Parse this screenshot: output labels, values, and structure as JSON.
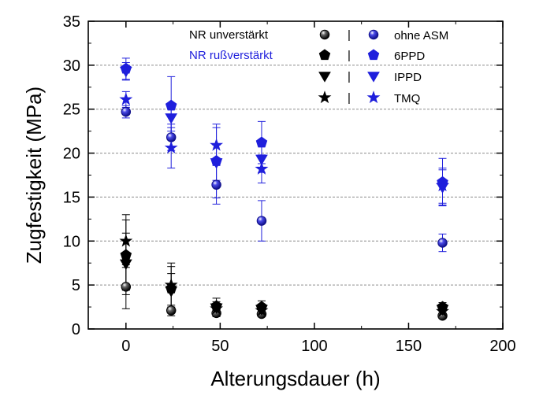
{
  "chart_data": {
    "type": "scatter",
    "xlabel": "Alterungsdauer (h)",
    "ylabel": "Zugfestigkeit (MPa)",
    "xlim": [
      -20,
      200
    ],
    "ylim": [
      0,
      35
    ],
    "x_ticks": [
      0,
      50,
      100,
      150,
      200
    ],
    "y_ticks": [
      0,
      5,
      10,
      15,
      20,
      25,
      30,
      35
    ],
    "grid": "horizontal dashed",
    "legend_position": "top-right",
    "legend": {
      "groups": [
        "NR unverstärkt",
        "NR rußverstärkt"
      ],
      "group_colors": [
        "#000000",
        "#1f1fdc"
      ],
      "separator": "|",
      "entries": [
        "ohne ASM",
        "6PPD",
        "IPPD",
        "TMQ"
      ]
    },
    "series": [
      {
        "name": "NR unverstärkt ohne ASM",
        "marker": "sphere",
        "color": "#000000",
        "x": [
          0,
          24,
          48,
          72,
          168
        ],
        "y": [
          4.8,
          2.1,
          1.8,
          1.7,
          1.5
        ],
        "err": [
          2.5,
          0.6,
          0.4,
          0.3,
          0.3
        ]
      },
      {
        "name": "NR unverstärkt 6PPD",
        "marker": "pentagon",
        "color": "#000000",
        "x": [
          0,
          24,
          48,
          72,
          168
        ],
        "y": [
          8.4,
          4.6,
          2.6,
          2.5,
          2.5
        ],
        "err": [
          4.0,
          2.5,
          0.9,
          0.7,
          0.5
        ]
      },
      {
        "name": "NR unverstärkt IPPD",
        "marker": "triangle-down",
        "color": "#000000",
        "x": [
          0,
          24,
          48,
          72,
          168
        ],
        "y": [
          7.4,
          4.3,
          2.4,
          2.2,
          2.2
        ],
        "err": [
          3.5,
          2.0,
          0.7,
          0.5,
          0.4
        ]
      },
      {
        "name": "NR unverstärkt TMQ",
        "marker": "star",
        "color": "#000000",
        "x": [
          0,
          24,
          48,
          72,
          168
        ],
        "y": [
          10.0,
          5.0,
          2.3,
          2.1,
          2.0
        ],
        "err": [
          3.0,
          2.5,
          0.6,
          0.5,
          0.4
        ]
      },
      {
        "name": "NR rußverstärkt ohne ASM",
        "marker": "sphere",
        "color": "#1f1fdc",
        "x": [
          0,
          24,
          48,
          72,
          168
        ],
        "y": [
          24.7,
          21.8,
          16.4,
          12.3,
          9.8
        ],
        "err": [
          0.7,
          1.5,
          2.2,
          2.3,
          1.0
        ]
      },
      {
        "name": "NR rußverstärkt 6PPD",
        "marker": "pentagon",
        "color": "#1f1fdc",
        "x": [
          0,
          24,
          48,
          72,
          168
        ],
        "y": [
          29.6,
          25.4,
          19.1,
          21.2,
          16.7
        ],
        "err": [
          1.2,
          3.3,
          4.2,
          2.4,
          2.7
        ]
      },
      {
        "name": "NR rußverstärkt IPPD",
        "marker": "triangle-down",
        "color": "#1f1fdc",
        "x": [
          0,
          24,
          48,
          72,
          168
        ],
        "y": [
          29.3,
          24.0,
          18.9,
          19.3,
          16.1
        ],
        "err": [
          1.0,
          1.5,
          2.0,
          1.5,
          2.0
        ]
      },
      {
        "name": "NR rußverstärkt TMQ",
        "marker": "star",
        "color": "#1f1fdc",
        "x": [
          0,
          24,
          48,
          72,
          168
        ],
        "y": [
          26.1,
          20.6,
          20.9,
          18.2,
          16.3
        ],
        "err": [
          0.9,
          2.3,
          2.0,
          1.6,
          2.0
        ]
      }
    ]
  }
}
